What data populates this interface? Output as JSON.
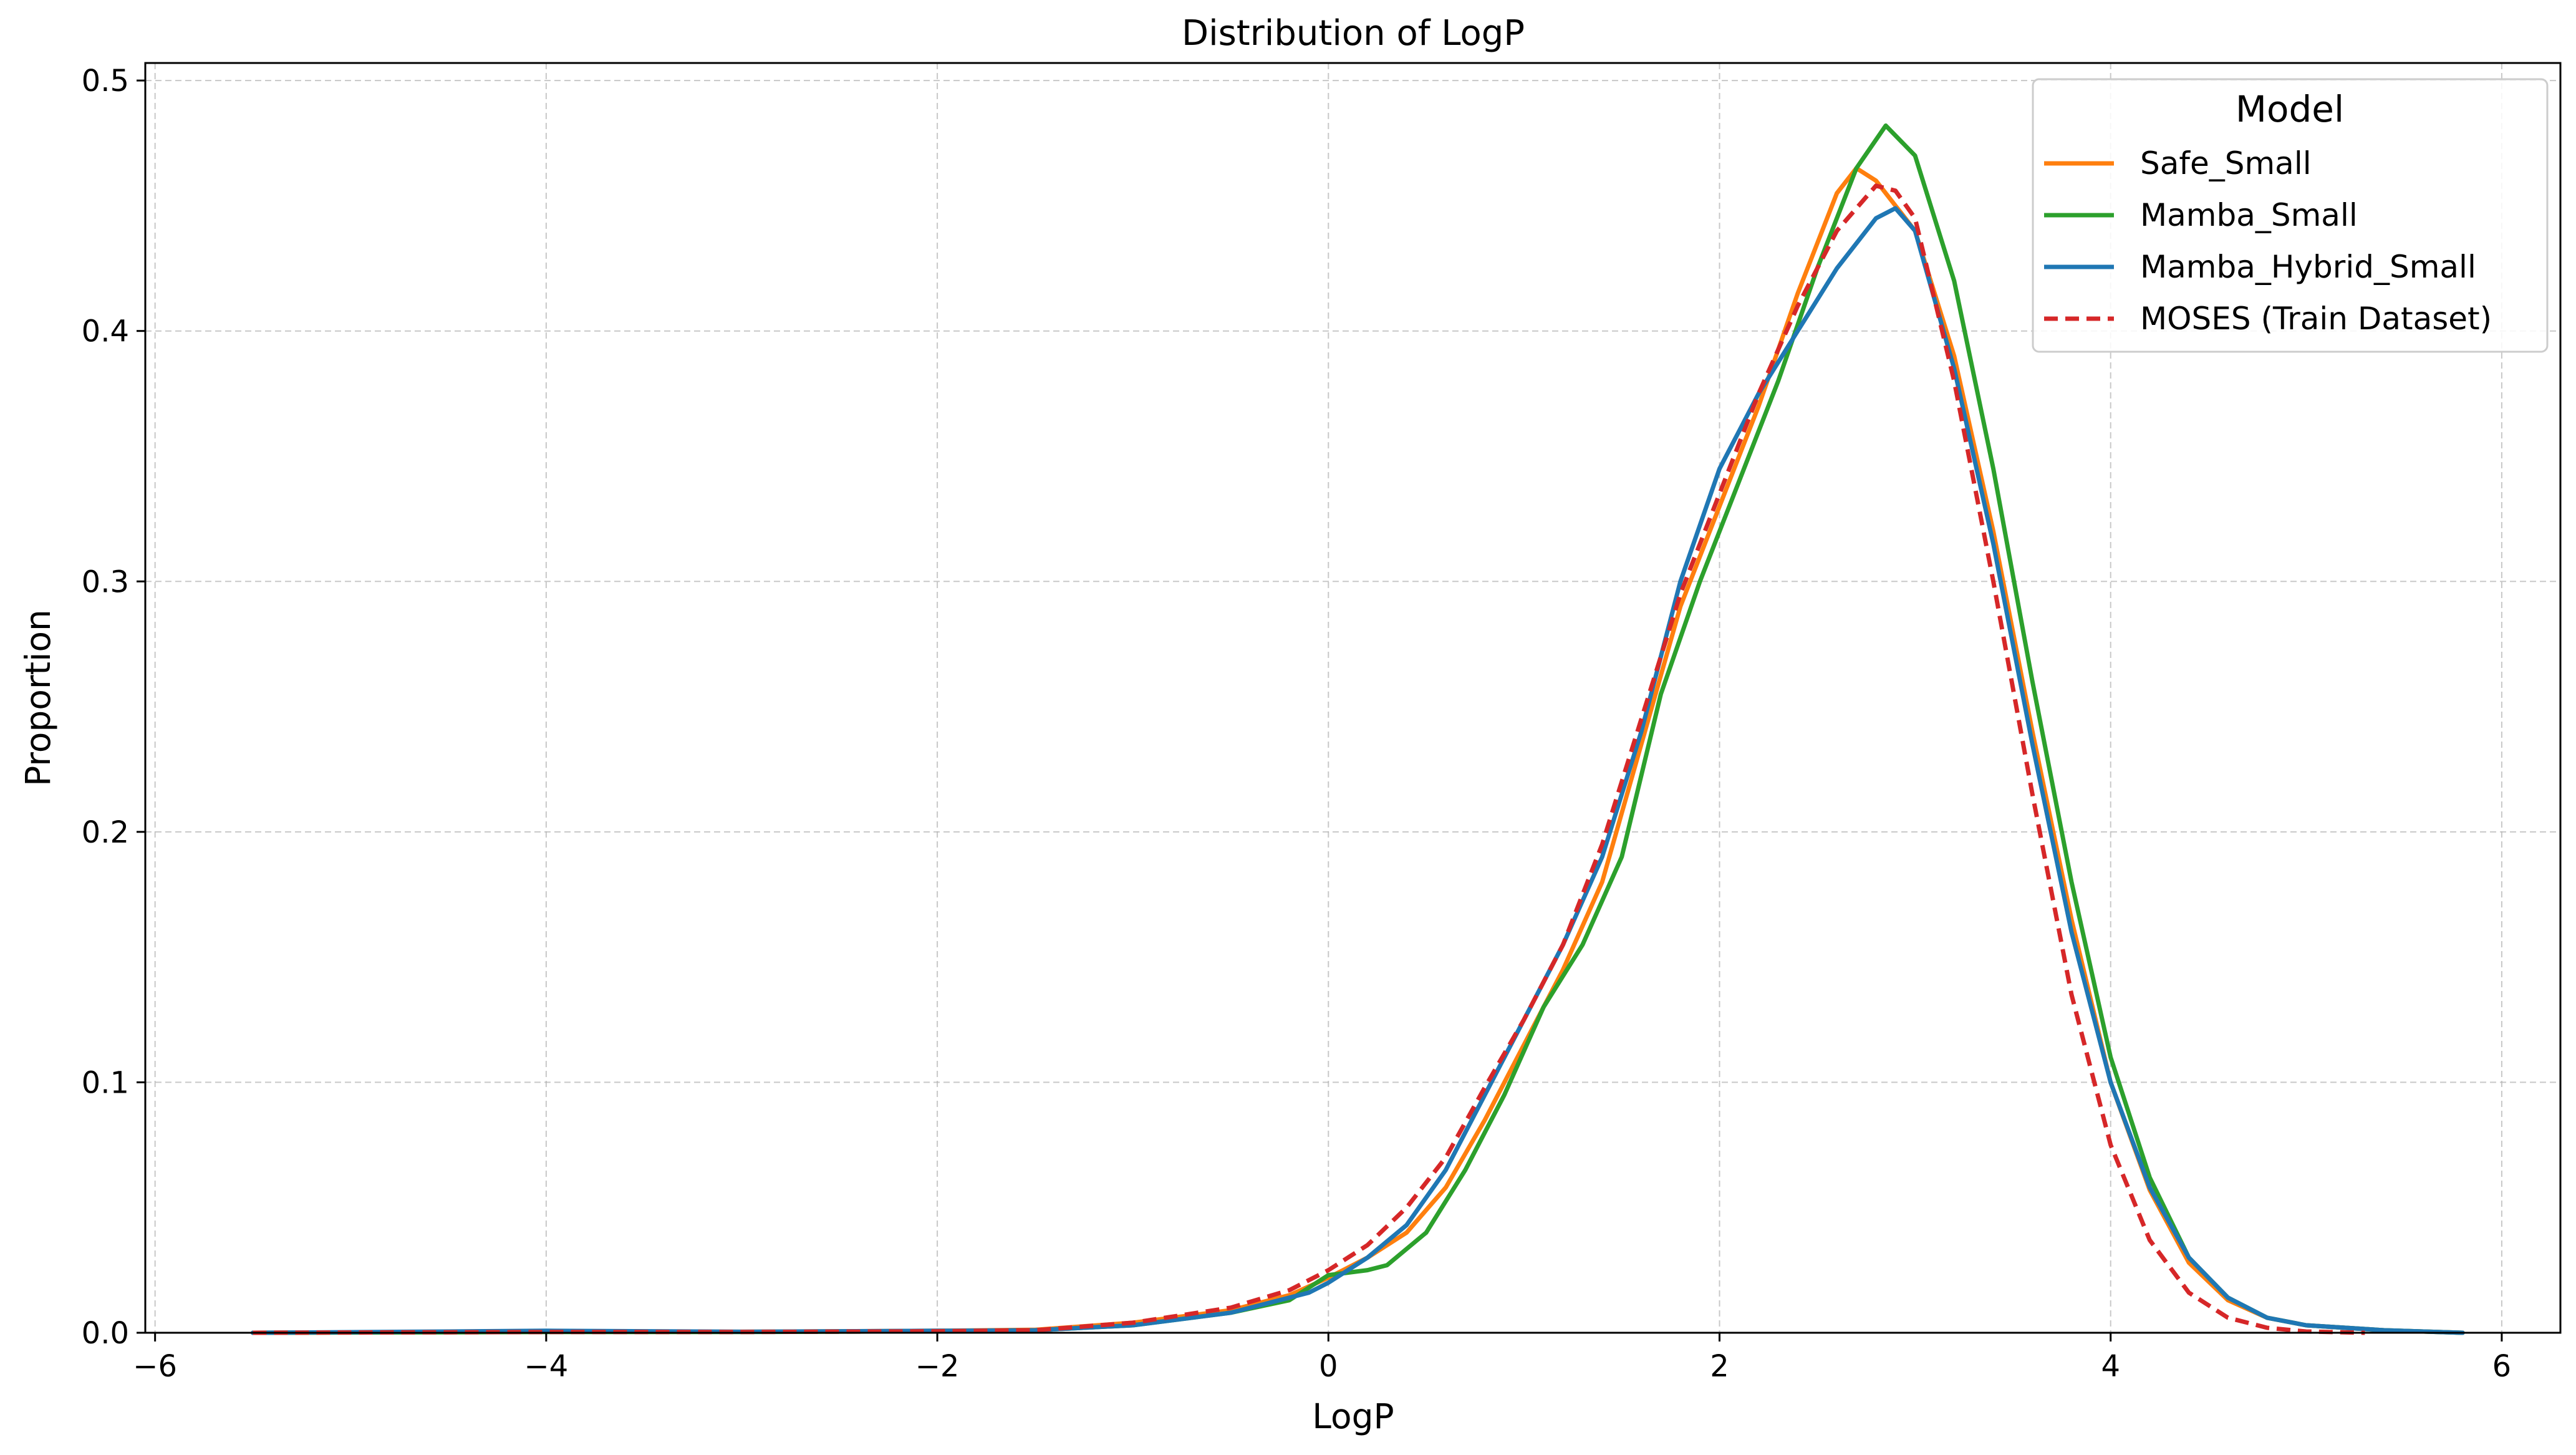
{
  "chart_data": {
    "type": "line",
    "title": "Distribution of LogP",
    "xlabel": "LogP",
    "ylabel": "Proportion",
    "xlim": [
      -6.05,
      6.3
    ],
    "ylim": [
      0,
      0.507
    ],
    "xticks": [
      -6,
      -4,
      -2,
      0,
      2,
      4,
      6
    ],
    "xtick_labels": [
      "−6",
      "−4",
      "−2",
      "0",
      "2",
      "4",
      "6"
    ],
    "yticks": [
      0.0,
      0.1,
      0.2,
      0.3,
      0.4,
      0.5
    ],
    "ytick_labels": [
      "0.0",
      "0.1",
      "0.2",
      "0.3",
      "0.4",
      "0.5"
    ],
    "grid": true,
    "legend": {
      "title": "Model",
      "position": "top-right"
    },
    "series": [
      {
        "name": "Safe_Small",
        "color": "#ff7f0e",
        "dashed": false,
        "points": [
          [
            -5.5,
            0
          ],
          [
            -4.5,
            0.0003
          ],
          [
            -4.0,
            0.0004
          ],
          [
            -3.0,
            0.0004
          ],
          [
            -2.0,
            0.0008
          ],
          [
            -1.5,
            0.0012
          ],
          [
            -1.0,
            0.004
          ],
          [
            -0.5,
            0.009
          ],
          [
            -0.2,
            0.015
          ],
          [
            0.0,
            0.022
          ],
          [
            0.2,
            0.03
          ],
          [
            0.4,
            0.04
          ],
          [
            0.6,
            0.058
          ],
          [
            0.8,
            0.085
          ],
          [
            1.0,
            0.115
          ],
          [
            1.2,
            0.145
          ],
          [
            1.4,
            0.18
          ],
          [
            1.6,
            0.235
          ],
          [
            1.8,
            0.29
          ],
          [
            2.0,
            0.33
          ],
          [
            2.2,
            0.37
          ],
          [
            2.4,
            0.415
          ],
          [
            2.6,
            0.455
          ],
          [
            2.7,
            0.465
          ],
          [
            2.8,
            0.46
          ],
          [
            3.0,
            0.44
          ],
          [
            3.2,
            0.39
          ],
          [
            3.4,
            0.32
          ],
          [
            3.6,
            0.24
          ],
          [
            3.8,
            0.165
          ],
          [
            4.0,
            0.1
          ],
          [
            4.2,
            0.057
          ],
          [
            4.4,
            0.028
          ],
          [
            4.6,
            0.013
          ],
          [
            4.8,
            0.006
          ],
          [
            5.0,
            0.003
          ],
          [
            5.4,
            0.001
          ],
          [
            5.8,
            0
          ]
        ]
      },
      {
        "name": "Mamba_Small",
        "color": "#2ca02c",
        "dashed": false,
        "points": [
          [
            -5.5,
            0
          ],
          [
            -4.5,
            0.0002
          ],
          [
            -4.0,
            0.0003
          ],
          [
            -3.0,
            0.0003
          ],
          [
            -2.0,
            0.0006
          ],
          [
            -1.5,
            0.001
          ],
          [
            -1.0,
            0.003
          ],
          [
            -0.5,
            0.008
          ],
          [
            -0.2,
            0.013
          ],
          [
            0.0,
            0.023
          ],
          [
            0.2,
            0.025
          ],
          [
            0.3,
            0.027
          ],
          [
            0.5,
            0.04
          ],
          [
            0.7,
            0.065
          ],
          [
            0.9,
            0.095
          ],
          [
            1.1,
            0.13
          ],
          [
            1.3,
            0.155
          ],
          [
            1.5,
            0.19
          ],
          [
            1.7,
            0.255
          ],
          [
            1.9,
            0.3
          ],
          [
            2.1,
            0.34
          ],
          [
            2.3,
            0.38
          ],
          [
            2.5,
            0.425
          ],
          [
            2.7,
            0.465
          ],
          [
            2.85,
            0.482
          ],
          [
            3.0,
            0.47
          ],
          [
            3.2,
            0.42
          ],
          [
            3.4,
            0.345
          ],
          [
            3.6,
            0.26
          ],
          [
            3.8,
            0.18
          ],
          [
            4.0,
            0.11
          ],
          [
            4.2,
            0.062
          ],
          [
            4.4,
            0.03
          ],
          [
            4.6,
            0.014
          ],
          [
            4.8,
            0.006
          ],
          [
            5.0,
            0.003
          ],
          [
            5.4,
            0.001
          ],
          [
            5.8,
            0
          ]
        ]
      },
      {
        "name": "Mamba_Hybrid_Small",
        "color": "#1f77b4",
        "dashed": false,
        "points": [
          [
            -5.5,
            0
          ],
          [
            -4.5,
            0.0005
          ],
          [
            -4.0,
            0.0008
          ],
          [
            -3.0,
            0.0004
          ],
          [
            -2.0,
            0.0008
          ],
          [
            -1.5,
            0.001
          ],
          [
            -1.0,
            0.003
          ],
          [
            -0.5,
            0.008
          ],
          [
            -0.3,
            0.012
          ],
          [
            -0.1,
            0.016
          ],
          [
            0.0,
            0.02
          ],
          [
            0.2,
            0.03
          ],
          [
            0.4,
            0.043
          ],
          [
            0.6,
            0.065
          ],
          [
            0.8,
            0.095
          ],
          [
            1.0,
            0.125
          ],
          [
            1.2,
            0.155
          ],
          [
            1.4,
            0.19
          ],
          [
            1.6,
            0.24
          ],
          [
            1.8,
            0.3
          ],
          [
            2.0,
            0.345
          ],
          [
            2.2,
            0.375
          ],
          [
            2.4,
            0.4
          ],
          [
            2.6,
            0.425
          ],
          [
            2.8,
            0.445
          ],
          [
            2.9,
            0.449
          ],
          [
            3.0,
            0.44
          ],
          [
            3.2,
            0.385
          ],
          [
            3.4,
            0.315
          ],
          [
            3.6,
            0.235
          ],
          [
            3.8,
            0.16
          ],
          [
            4.0,
            0.1
          ],
          [
            4.2,
            0.058
          ],
          [
            4.4,
            0.03
          ],
          [
            4.6,
            0.014
          ],
          [
            4.8,
            0.006
          ],
          [
            5.0,
            0.003
          ],
          [
            5.4,
            0.001
          ],
          [
            5.8,
            0
          ]
        ]
      },
      {
        "name": "MOSES (Train Dataset)",
        "color": "#d62728",
        "dashed": true,
        "points": [
          [
            -5.5,
            0
          ],
          [
            -4.5,
            0.0002
          ],
          [
            -4.0,
            0.0003
          ],
          [
            -3.0,
            0.0003
          ],
          [
            -2.0,
            0.0006
          ],
          [
            -1.5,
            0.001
          ],
          [
            -1.0,
            0.004
          ],
          [
            -0.5,
            0.01
          ],
          [
            -0.2,
            0.017
          ],
          [
            0.0,
            0.025
          ],
          [
            0.2,
            0.035
          ],
          [
            0.4,
            0.05
          ],
          [
            0.6,
            0.07
          ],
          [
            0.8,
            0.098
          ],
          [
            1.0,
            0.125
          ],
          [
            1.2,
            0.155
          ],
          [
            1.4,
            0.195
          ],
          [
            1.6,
            0.245
          ],
          [
            1.8,
            0.295
          ],
          [
            2.0,
            0.335
          ],
          [
            2.2,
            0.375
          ],
          [
            2.4,
            0.41
          ],
          [
            2.6,
            0.44
          ],
          [
            2.8,
            0.458
          ],
          [
            2.9,
            0.456
          ],
          [
            3.0,
            0.445
          ],
          [
            3.2,
            0.38
          ],
          [
            3.4,
            0.3
          ],
          [
            3.6,
            0.215
          ],
          [
            3.8,
            0.135
          ],
          [
            4.0,
            0.075
          ],
          [
            4.2,
            0.037
          ],
          [
            4.4,
            0.016
          ],
          [
            4.6,
            0.006
          ],
          [
            4.8,
            0.002
          ],
          [
            5.0,
            0.0005
          ],
          [
            5.3,
            0
          ]
        ]
      }
    ]
  }
}
